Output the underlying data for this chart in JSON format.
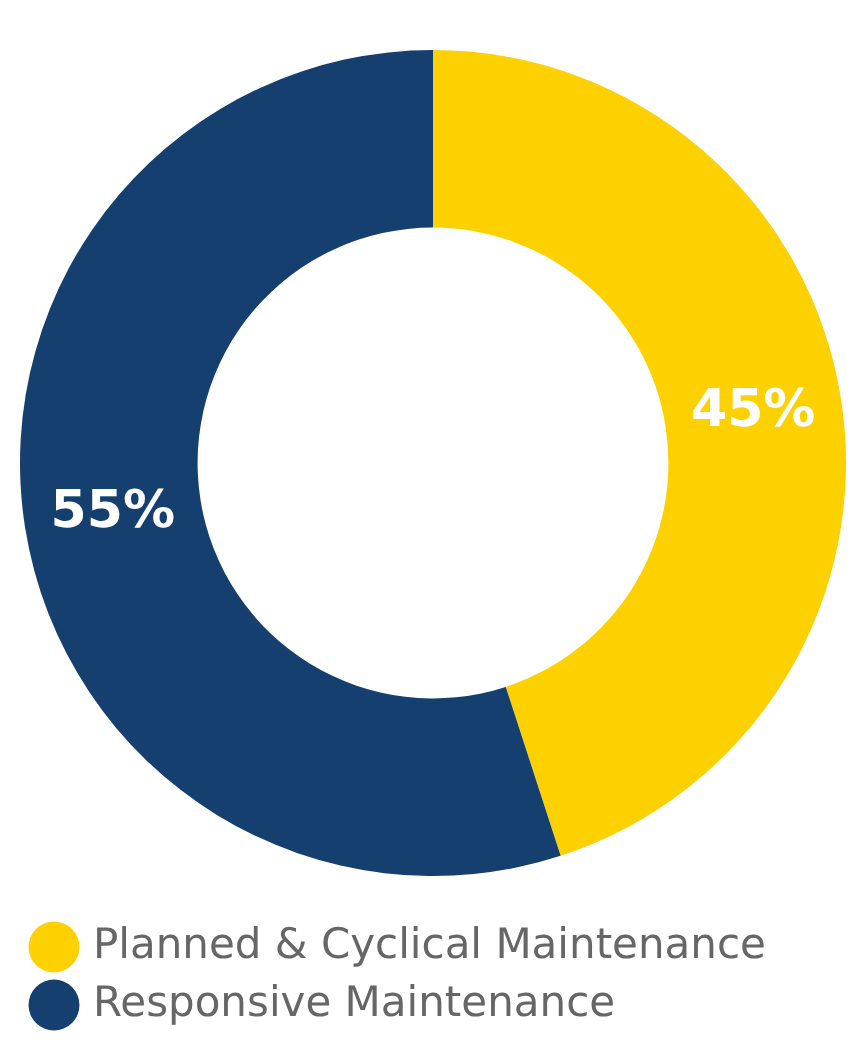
{
  "chart_data": {
    "type": "donut",
    "categories": [
      "Planned & Cyclical Maintenance",
      "Responsive Maintenance"
    ],
    "values": [
      45,
      55
    ],
    "colors": [
      "#fdd000",
      "#143f6e"
    ],
    "value_labels": [
      "45%",
      "55%"
    ],
    "legend": "bottom"
  }
}
